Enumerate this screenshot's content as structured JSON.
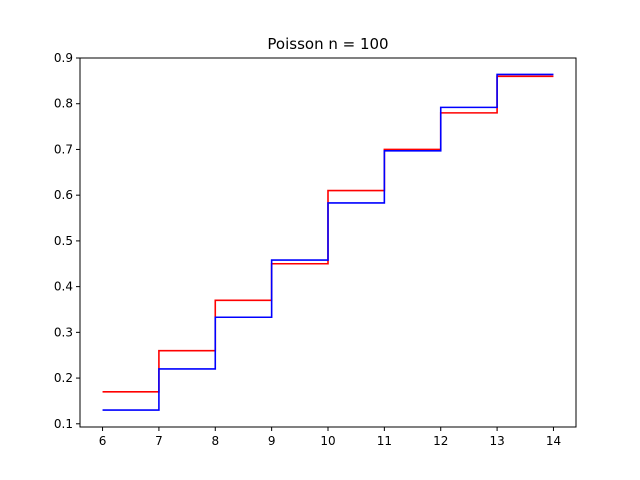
{
  "chart_data": {
    "type": "line",
    "step": "post",
    "title": "Poisson n = 100",
    "xlabel": "",
    "ylabel": "",
    "xlim": [
      5.6,
      14.4
    ],
    "ylim": [
      0.093,
      0.9
    ],
    "xticks": [
      6,
      7,
      8,
      9,
      10,
      11,
      12,
      13,
      14
    ],
    "yticks": [
      0.1,
      0.2,
      0.3,
      0.4,
      0.5,
      0.6,
      0.7,
      0.8,
      0.9
    ],
    "ytick_labels": [
      "0.1",
      "0.2",
      "0.3",
      "0.4",
      "0.5",
      "0.6",
      "0.7",
      "0.8",
      "0.9"
    ],
    "grid": false,
    "x": [
      6,
      7,
      8,
      9,
      10,
      11,
      12,
      13,
      14
    ],
    "series": [
      {
        "color": "#ff0000",
        "values": [
          0.17,
          0.26,
          0.37,
          0.45,
          0.61,
          0.7,
          0.78,
          0.86,
          0.86
        ]
      },
      {
        "color": "#0000ff",
        "values": [
          0.13,
          0.22,
          0.333,
          0.458,
          0.583,
          0.697,
          0.792,
          0.864,
          0.864
        ]
      }
    ]
  }
}
